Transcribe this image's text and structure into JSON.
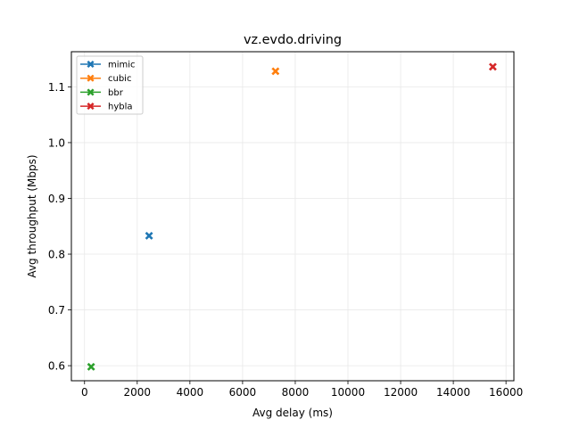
{
  "chart_data": {
    "type": "scatter",
    "title": "vz.evdo.driving",
    "xlabel": "Avg delay (ms)",
    "ylabel": "Avg throughput (Mbps)",
    "xlim": [
      -500,
      16300
    ],
    "ylim": [
      0.573,
      1.163
    ],
    "xticks": [
      0,
      2000,
      4000,
      6000,
      8000,
      10000,
      12000,
      14000,
      16000
    ],
    "yticks": [
      0.6,
      0.7,
      0.8,
      0.9,
      1.0,
      1.1
    ],
    "grid": true,
    "legend_position": "top-left",
    "marker": "x-filled",
    "series": [
      {
        "name": "mimic",
        "color": "#1f77b4",
        "points": [
          {
            "x": 2450,
            "y": 0.833
          }
        ]
      },
      {
        "name": "cubic",
        "color": "#ff7f0e",
        "points": [
          {
            "x": 7250,
            "y": 1.128
          }
        ]
      },
      {
        "name": "bbr",
        "color": "#2ca02c",
        "points": [
          {
            "x": 250,
            "y": 0.598
          }
        ]
      },
      {
        "name": "hybla",
        "color": "#d62728",
        "points": [
          {
            "x": 15500,
            "y": 1.136
          }
        ]
      }
    ]
  }
}
